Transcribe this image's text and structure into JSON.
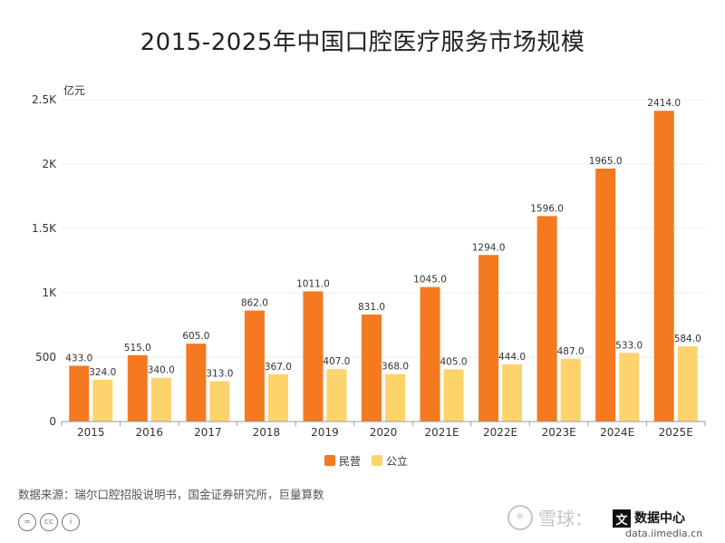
{
  "title": "2015-2025年中国口腔医疗服务市场规模",
  "source": "数据来源：瑞尔口腔招股说明书，国金证券研究所，巨量算数",
  "watermark": "雪球：",
  "brand": {
    "mark": "文",
    "name": "数据中心",
    "sub": "data.iimedia.cn"
  },
  "license_icons": [
    "=",
    "cc",
    "i"
  ],
  "chart_data": {
    "type": "bar",
    "ylabel": "亿元",
    "ylim": [
      0,
      2500
    ],
    "yticks": [
      {
        "value": 0,
        "label": "0"
      },
      {
        "value": 500,
        "label": "500"
      },
      {
        "value": 1000,
        "label": "1K"
      },
      {
        "value": 1500,
        "label": "1.5K"
      },
      {
        "value": 2000,
        "label": "2K"
      },
      {
        "value": 2500,
        "label": "2.5K"
      }
    ],
    "categories": [
      "2015",
      "2016",
      "2017",
      "2018",
      "2019",
      "2020",
      "2021E",
      "2022E",
      "2023E",
      "2024E",
      "2025E"
    ],
    "series": [
      {
        "name": "民营",
        "color": "#f47920",
        "values": [
          433.0,
          515.0,
          605.0,
          862.0,
          1011.0,
          831.0,
          1045.0,
          1294.0,
          1596.0,
          1965.0,
          2414.0
        ],
        "labels": [
          "433.0",
          "515.0",
          "605.0",
          "862.0",
          "1011.0",
          "831.0",
          "1045.0",
          "1294.0",
          "1596.0",
          "1965.0",
          "2414.0"
        ]
      },
      {
        "name": "公立",
        "color": "#fdd36b",
        "values": [
          324.0,
          340.0,
          313.0,
          367.0,
          407.0,
          368.0,
          405.0,
          444.0,
          487.0,
          533.0,
          584.0
        ],
        "labels": [
          "324.0",
          "340.0",
          "313.0",
          "367.0",
          "407.0",
          "368.0",
          "405.0",
          "444.0",
          "487.0",
          "533.0",
          "584.0"
        ]
      }
    ],
    "grid": true,
    "legend": "bottom"
  }
}
